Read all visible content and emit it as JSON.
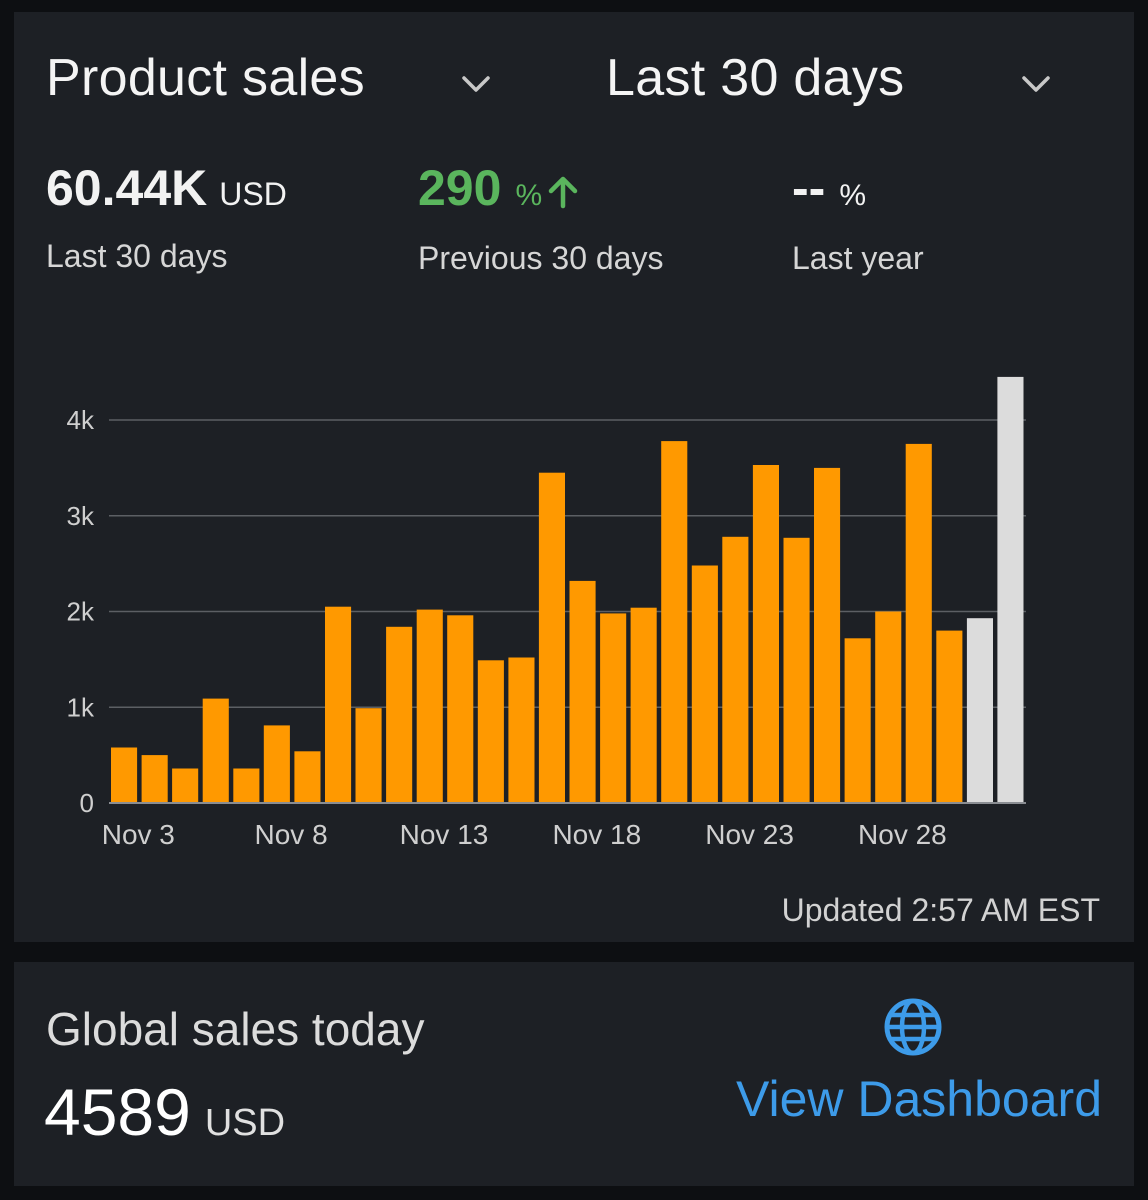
{
  "header": {
    "report_selector": {
      "label": "Product sales",
      "icon": "chevron-down-icon"
    },
    "range_selector": {
      "label": "Last 30 days",
      "icon": "chevron-down-icon"
    }
  },
  "metrics": {
    "total": {
      "value": "60.44K",
      "unit": "USD",
      "caption": "Last 30 days"
    },
    "previous": {
      "value": "290",
      "unit": "%",
      "caption": "Previous 30 days",
      "trend_icon": "arrow-up-icon",
      "color": "#5ab55d"
    },
    "last_year": {
      "value": "--",
      "unit": "%",
      "caption": "Last year"
    }
  },
  "chart_data": {
    "type": "bar",
    "x_tick_labels": [
      "Nov 3",
      "Nov 8",
      "Nov 13",
      "Nov 18",
      "Nov 23",
      "Nov 28"
    ],
    "y_tick_labels": [
      "0",
      "1k",
      "2k",
      "3k",
      "4k"
    ],
    "ylim": [
      0,
      4600
    ],
    "grid": true,
    "bar_color": "#ff9900",
    "projected_color": "#dcdcdc",
    "values": [
      580,
      500,
      360,
      1090,
      360,
      810,
      540,
      2050,
      990,
      1840,
      2020,
      1960,
      1490,
      1520,
      3450,
      2320,
      1980,
      2040,
      3780,
      2480,
      2780,
      3530,
      2770,
      3500,
      1720,
      2000,
      3750,
      1800,
      1930,
      4450
    ],
    "projected_indices": [
      28,
      29
    ]
  },
  "updated": {
    "text": "Updated 2:57 AM EST"
  },
  "global": {
    "title": "Global sales today",
    "value": "4589",
    "unit": "USD",
    "icon": "globe-icon",
    "link_label": "View Dashboard",
    "link_color": "#3d9be9"
  }
}
